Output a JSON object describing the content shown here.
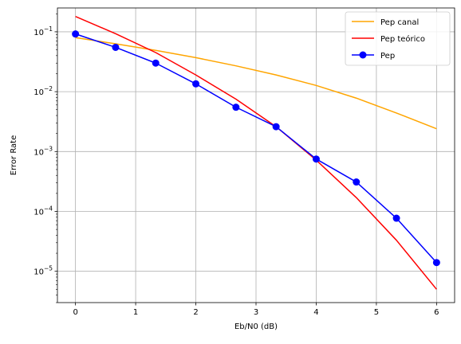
{
  "chart_data": {
    "type": "line",
    "title": "",
    "xlabel": "Eb/N0 (dB)",
    "ylabel": "Error Rate",
    "xscale": "linear",
    "yscale": "log",
    "xlim": [
      -0.3,
      6.3
    ],
    "ylim": [
      3e-06,
      0.25
    ],
    "xticks": [
      0,
      1,
      2,
      3,
      4,
      5,
      6
    ],
    "xtick_labels": [
      "0",
      "1",
      "2",
      "3",
      "4",
      "5",
      "6"
    ],
    "yticks": [
      1e-05,
      0.0001,
      0.001,
      0.01,
      0.1
    ],
    "ytick_labels": [
      {
        "base": "10",
        "exp": "−5"
      },
      {
        "base": "10",
        "exp": "−4"
      },
      {
        "base": "10",
        "exp": "−3"
      },
      {
        "base": "10",
        "exp": "−2"
      },
      {
        "base": "10",
        "exp": "−1"
      }
    ],
    "grid": true,
    "legend_position": "top-right",
    "series": [
      {
        "name": "Pep canal",
        "color": "#ffa500",
        "marker": "none",
        "x": [
          0,
          0.6667,
          1.3333,
          2,
          2.6667,
          3.3333,
          4,
          4.6667,
          5.3333,
          6
        ],
        "y": [
          0.08,
          0.063,
          0.049,
          0.037,
          0.027,
          0.019,
          0.0127,
          0.0078,
          0.0044,
          0.0024
        ]
      },
      {
        "name": "Pep teórico",
        "color": "#ff0000",
        "marker": "none",
        "x": [
          0,
          0.6667,
          1.3333,
          2,
          2.6667,
          3.3333,
          4,
          4.6667,
          5.3333,
          6
        ],
        "y": [
          0.18,
          0.093,
          0.045,
          0.019,
          0.0075,
          0.0026,
          0.00072,
          0.00017,
          3.3e-05,
          5e-06
        ]
      },
      {
        "name": "Pep",
        "color": "#0000ff",
        "marker": "circle",
        "x": [
          0,
          0.6667,
          1.3333,
          2,
          2.6667,
          3.3333,
          4,
          4.6667,
          5.3333,
          6
        ],
        "y": [
          0.092,
          0.055,
          0.03,
          0.0135,
          0.0055,
          0.0026,
          0.00075,
          0.00031,
          7.7e-05,
          1.4e-05
        ]
      }
    ]
  }
}
